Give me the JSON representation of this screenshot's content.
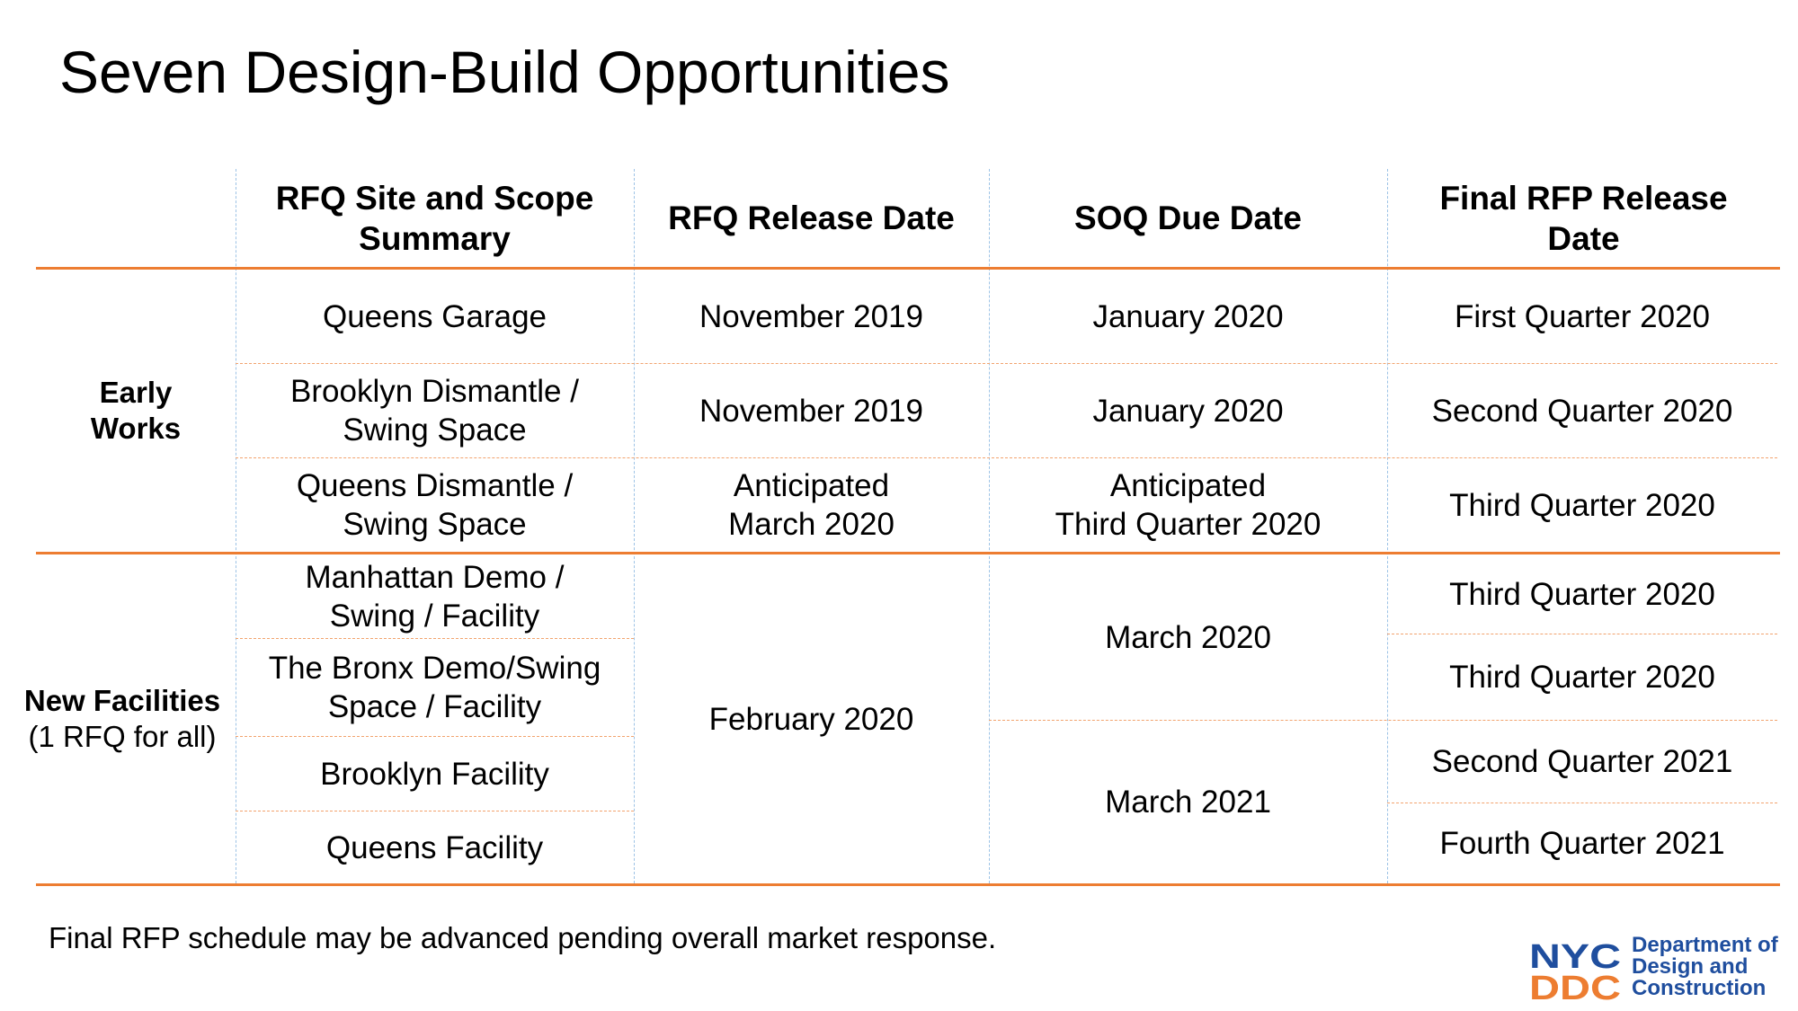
{
  "title": "Seven Design-Build Opportunities",
  "headers": {
    "scope": [
      "RFQ Site and Scope",
      "Summary"
    ],
    "rfq_release": "RFQ Release Date",
    "soq_due": "SOQ Due Date",
    "final_rfp": [
      "Final RFP Release",
      "Date"
    ]
  },
  "groups": {
    "early_works": [
      "Early",
      "Works"
    ],
    "new_facilities": {
      "label": "New Facilities",
      "sub": "(1 RFQ for all)"
    }
  },
  "rows": [
    {
      "scope": [
        "Queens Garage"
      ],
      "rfq_release": [
        "November 2019"
      ],
      "soq_due": [
        "January 2020"
      ],
      "final_rfp": "First Quarter 2020"
    },
    {
      "scope": [
        "Brooklyn Dismantle /",
        "Swing Space"
      ],
      "rfq_release": [
        "November 2019"
      ],
      "soq_due": [
        "January 2020"
      ],
      "final_rfp": "Second Quarter 2020"
    },
    {
      "scope": [
        "Queens Dismantle /",
        "Swing Space"
      ],
      "rfq_release": [
        "Anticipated",
        "March 2020"
      ],
      "soq_due": [
        "Anticipated",
        "Third Quarter 2020"
      ],
      "final_rfp": "Third Quarter 2020"
    },
    {
      "scope": [
        "Manhattan Demo /",
        "Swing / Facility"
      ],
      "final_rfp": "Third Quarter 2020"
    },
    {
      "scope": [
        "The Bronx Demo/Swing",
        "Space / Facility"
      ],
      "final_rfp": "Third Quarter 2020"
    },
    {
      "scope": [
        "Brooklyn Facility"
      ],
      "final_rfp": "Second Quarter 2021"
    },
    {
      "scope": [
        "Queens Facility"
      ],
      "final_rfp": "Fourth Quarter 2021"
    }
  ],
  "merged": {
    "new_facilities_rfq_release": "February 2020",
    "soq_due_group_a": "March 2020",
    "soq_due_group_b": "March 2021"
  },
  "footnote": "Final RFP schedule may be advanced pending overall market response.",
  "logo": {
    "mark_top": "NYC",
    "mark_bottom": "DDC",
    "text": [
      "Department of",
      "Design and",
      "Construction"
    ]
  },
  "colors": {
    "accent_orange": "#ed7d31",
    "nyc_blue": "#1f4e9e",
    "grid_blue": "#9dc3e6"
  }
}
